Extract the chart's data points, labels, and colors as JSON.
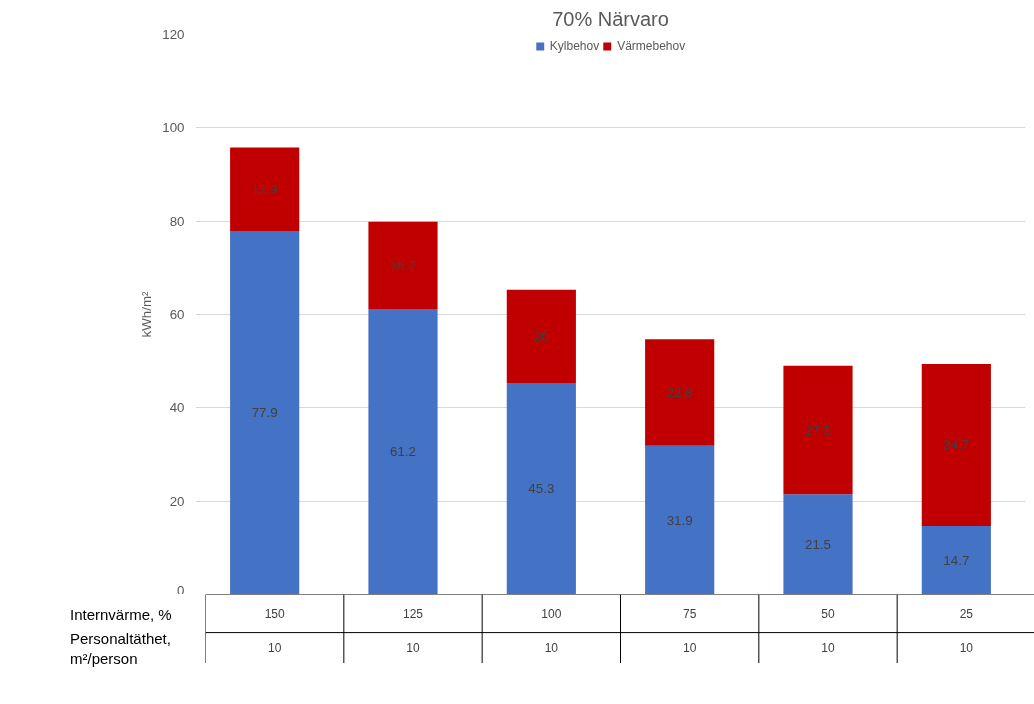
{
  "chart_data": {
    "type": "bar",
    "stacked": true,
    "title": "70% Närvaro",
    "ylabel": "kWh/m²",
    "xlabel": "Internvärme, %",
    "categories": [
      "150",
      "125",
      "100",
      "75",
      "50",
      "25"
    ],
    "series": [
      {
        "name": "Kylbehov",
        "color": "#4472c4",
        "values": [
          77.9,
          61.2,
          45.3,
          31.9,
          21.5,
          14.7
        ]
      },
      {
        "name": "Värmebehov",
        "color": "#c00000",
        "values": [
          17.9,
          18.7,
          20,
          22.8,
          27.5,
          34.7
        ]
      }
    ],
    "ylim": [
      0,
      120
    ],
    "yticks": [
      0,
      20,
      40,
      60,
      80,
      100,
      120
    ],
    "grid": "y",
    "legend": "top",
    "data_labels": true,
    "annotations": [
      "Personaltäthet, m²/person",
      "10",
      "10",
      "10",
      "10",
      "10",
      "10"
    ]
  }
}
